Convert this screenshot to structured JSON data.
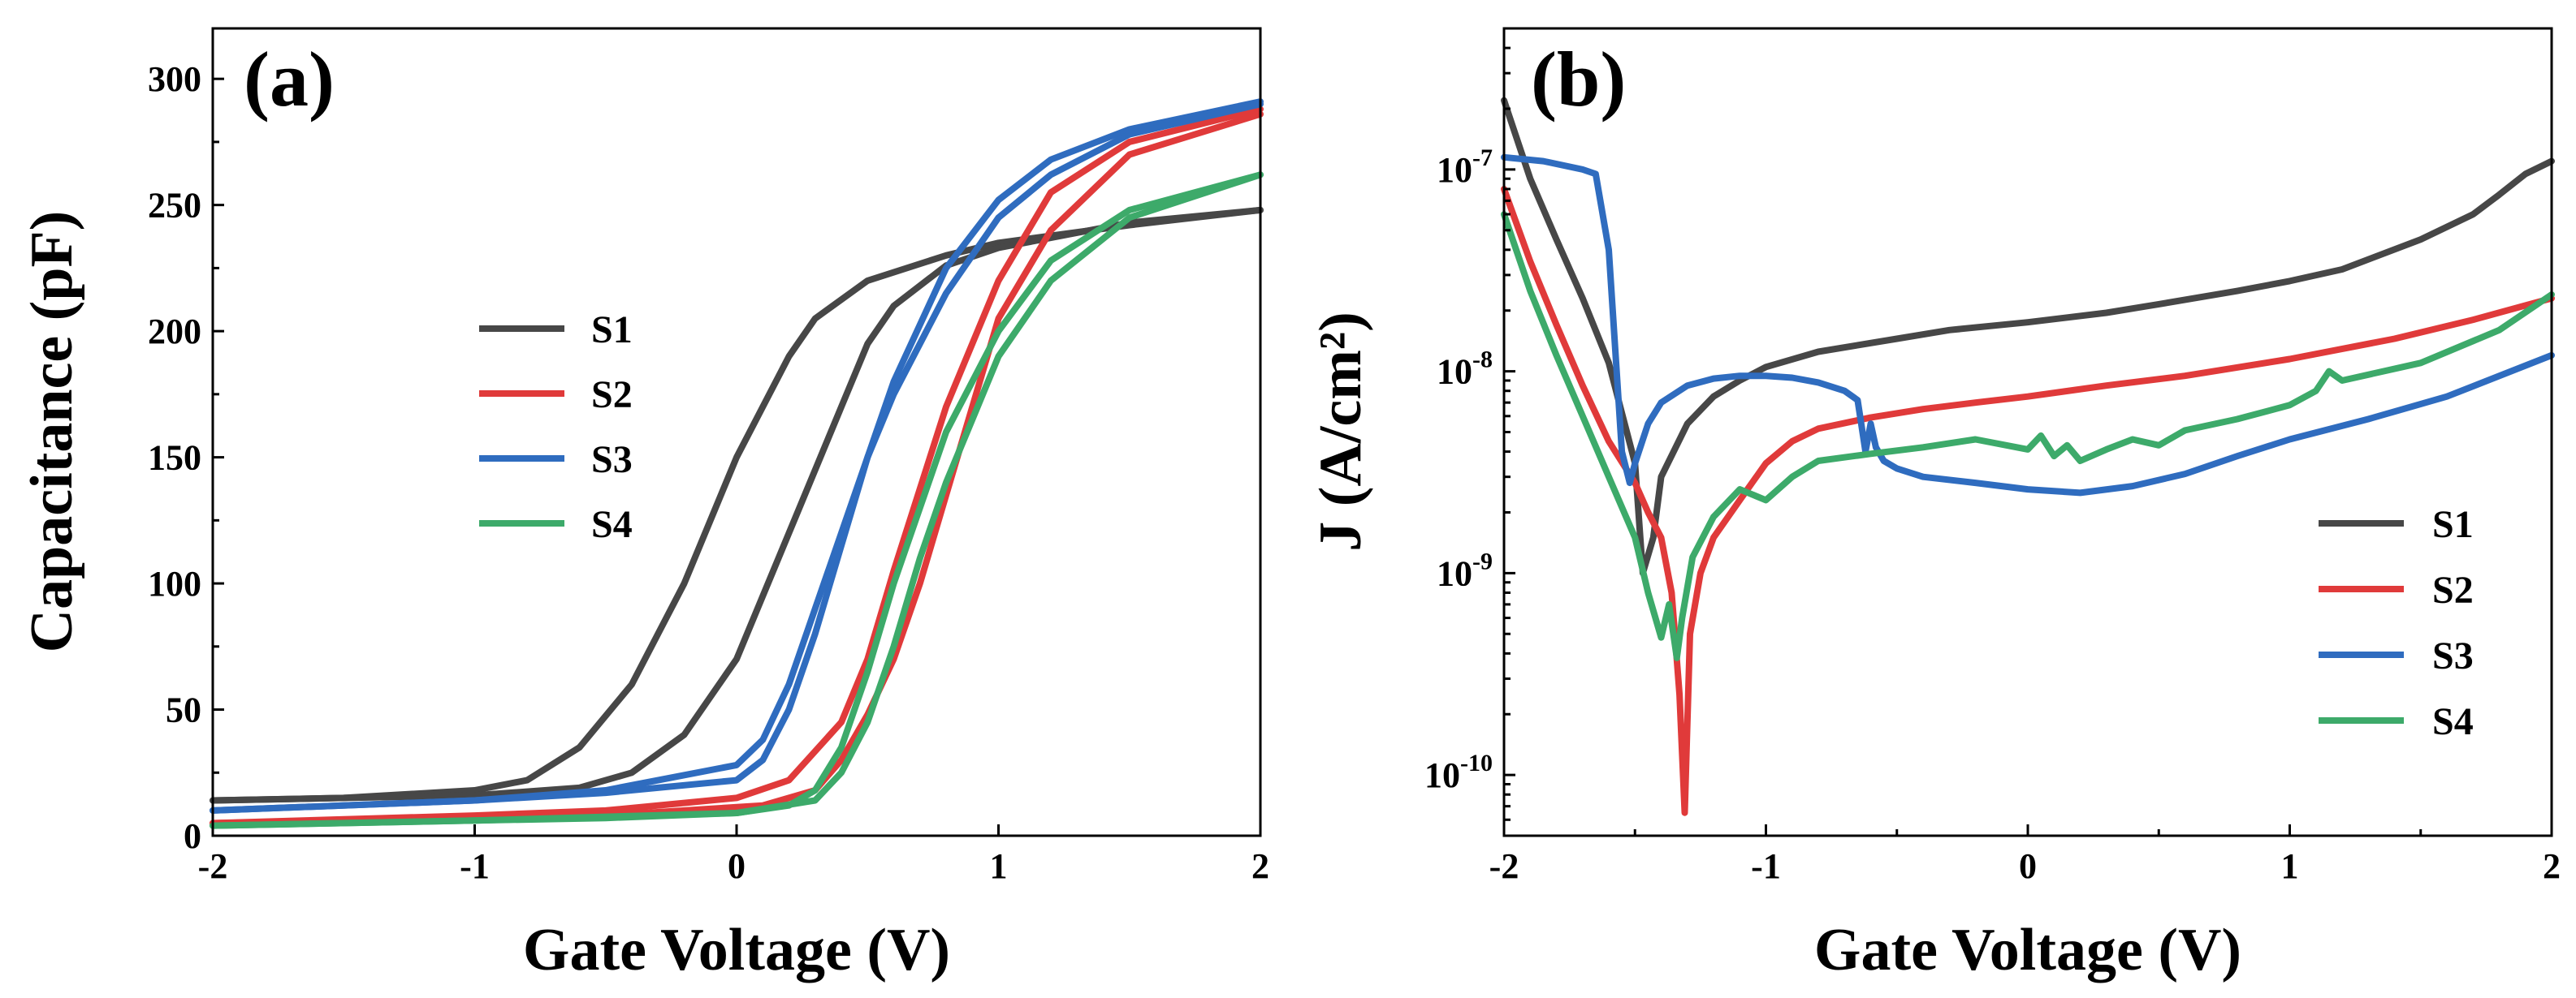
{
  "chart_data": [
    {
      "panel_label": "(a)",
      "type": "line",
      "title": "",
      "xlabel": "Gate Voltage (V)",
      "ylabel": "Capacitance (pF)",
      "xlim": [
        -2,
        2
      ],
      "ylim": [
        0,
        320
      ],
      "x_ticks": [
        "-2",
        "-1",
        "0",
        "1",
        "2"
      ],
      "y_ticks": [
        "0",
        "50",
        "100",
        "150",
        "200",
        "250",
        "300"
      ],
      "legend": {
        "placement": "center-left",
        "entries": [
          "S1",
          "S2",
          "S3",
          "S4"
        ]
      },
      "series": [
        {
          "name": "S1",
          "color": "#474747",
          "forward": {
            "x": [
              -2,
              -1.5,
              -1,
              -0.8,
              -0.6,
              -0.4,
              -0.2,
              0,
              0.2,
              0.3,
              0.5,
              0.8,
              1,
              1.5,
              2
            ],
            "y": [
              14,
              15,
              18,
              22,
              35,
              60,
              100,
              150,
              190,
              205,
              220,
              230,
              235,
              242,
              248
            ]
          },
          "reverse": {
            "x": [
              2,
              1.5,
              1,
              0.8,
              0.6,
              0.5,
              0.4,
              0.2,
              0,
              -0.2,
              -0.4,
              -0.6,
              -1,
              -2
            ],
            "y": [
              248,
              243,
              233,
              226,
              210,
              195,
              170,
              120,
              70,
              40,
              25,
              19,
              16,
              14
            ]
          }
        },
        {
          "name": "S2",
          "color": "#e03a3a",
          "forward": {
            "x": [
              -2,
              -1,
              -0.5,
              0,
              0.2,
              0.4,
              0.5,
              0.6,
              0.8,
              1,
              1.2,
              1.5,
              2
            ],
            "y": [
              5,
              8,
              10,
              15,
              22,
              45,
              70,
              105,
              170,
              220,
              255,
              275,
              288
            ]
          },
          "reverse": {
            "x": [
              2,
              1.5,
              1.2,
              1,
              0.9,
              0.8,
              0.7,
              0.6,
              0.5,
              0.4,
              0.3,
              0.1,
              -0.5,
              -1,
              -2
            ],
            "y": [
              286,
              270,
              240,
              205,
              170,
              135,
              100,
              70,
              48,
              30,
              18,
              12,
              8,
              7,
              5
            ]
          }
        },
        {
          "name": "S3",
          "color": "#2f6cbf",
          "forward": {
            "x": [
              -2,
              -1,
              -0.5,
              0,
              0.1,
              0.2,
              0.3,
              0.4,
              0.5,
              0.6,
              0.8,
              1,
              1.2,
              1.5,
              2
            ],
            "y": [
              10,
              14,
              17,
              22,
              30,
              50,
              80,
              115,
              150,
              180,
              225,
              252,
              268,
              280,
              291
            ]
          },
          "reverse": {
            "x": [
              2,
              1.5,
              1.2,
              1,
              0.8,
              0.6,
              0.5,
              0.4,
              0.3,
              0.2,
              0.1,
              0,
              -0.5,
              -1,
              -2
            ],
            "y": [
              290,
              278,
              262,
              245,
              215,
              175,
              150,
              120,
              90,
              60,
              38,
              28,
              18,
              14,
              10
            ]
          }
        },
        {
          "name": "S4",
          "color": "#3daa6a",
          "forward": {
            "x": [
              -2,
              -1,
              -0.5,
              0,
              0.2,
              0.3,
              0.4,
              0.5,
              0.6,
              0.7,
              0.8,
              1,
              1.2,
              1.5,
              2
            ],
            "y": [
              4,
              6,
              7,
              9,
              12,
              18,
              35,
              65,
              100,
              130,
              160,
              200,
              228,
              248,
              262
            ]
          },
          "reverse": {
            "x": [
              2,
              1.5,
              1.2,
              1,
              0.9,
              0.8,
              0.7,
              0.6,
              0.5,
              0.4,
              0.3,
              0,
              -1,
              -2
            ],
            "y": [
              262,
              245,
              220,
              190,
              165,
              140,
              110,
              75,
              45,
              25,
              14,
              9,
              6,
              4
            ]
          }
        }
      ]
    },
    {
      "panel_label": "(b)",
      "type": "line",
      "title": "",
      "xlabel": "Gate Voltage (V)",
      "ylabel": "J (A/cm²)",
      "yscale": "log",
      "xlim": [
        -2,
        2
      ],
      "ylim": [
        5e-11,
        5e-07
      ],
      "x_ticks": [
        "-2",
        "-1",
        "0",
        "1",
        "2"
      ],
      "y_ticks": [
        {
          "base": "10",
          "exp": "-10",
          "value": 1e-10
        },
        {
          "base": "10",
          "exp": "-9",
          "value": 1e-09
        },
        {
          "base": "10",
          "exp": "-8",
          "value": 1e-08
        },
        {
          "base": "10",
          "exp": "-7",
          "value": 1e-07
        }
      ],
      "legend": {
        "placement": "bottom-right",
        "entries": [
          "S1",
          "S2",
          "S3",
          "S4"
        ]
      },
      "series": [
        {
          "name": "S1",
          "color": "#474747",
          "x": [
            -2,
            -1.9,
            -1.8,
            -1.7,
            -1.6,
            -1.5,
            -1.47,
            -1.43,
            -1.4,
            -1.3,
            -1.2,
            -1.1,
            -1,
            -0.8,
            -0.5,
            -0.3,
            0,
            0.3,
            0.5,
            0.8,
            1,
            1.2,
            1.5,
            1.7,
            1.8,
            1.9,
            2
          ],
          "y": [
            2.2e-07,
            9e-08,
            4.5e-08,
            2.3e-08,
            1.1e-08,
            3.5e-09,
            1e-09,
            1.5e-09,
            3e-09,
            5.5e-09,
            7.5e-09,
            9e-09,
            1.05e-08,
            1.25e-08,
            1.45e-08,
            1.6e-08,
            1.75e-08,
            1.95e-08,
            2.15e-08,
            2.5e-08,
            2.8e-08,
            3.2e-08,
            4.5e-08,
            6e-08,
            7.5e-08,
            9.5e-08,
            1.1e-07
          ]
        },
        {
          "name": "S2",
          "color": "#e03a3a",
          "x": [
            -2,
            -1.9,
            -1.8,
            -1.7,
            -1.6,
            -1.5,
            -1.45,
            -1.4,
            -1.36,
            -1.33,
            -1.31,
            -1.29,
            -1.25,
            -1.2,
            -1.1,
            -1,
            -0.9,
            -0.8,
            -0.6,
            -0.4,
            -0.2,
            0,
            0.3,
            0.6,
            1,
            1.4,
            1.7,
            2
          ],
          "y": [
            8e-08,
            3.5e-08,
            1.7e-08,
            8.5e-09,
            4.5e-09,
            2.8e-09,
            2e-09,
            1.5e-09,
            8e-10,
            2.5e-10,
            6.5e-11,
            5e-10,
            1e-09,
            1.5e-09,
            2.3e-09,
            3.5e-09,
            4.5e-09,
            5.2e-09,
            5.9e-09,
            6.5e-09,
            7e-09,
            7.5e-09,
            8.5e-09,
            9.5e-09,
            1.15e-08,
            1.45e-08,
            1.8e-08,
            2.3e-08
          ]
        },
        {
          "name": "S3",
          "color": "#2f6cbf",
          "x": [
            -2,
            -1.85,
            -1.7,
            -1.65,
            -1.6,
            -1.57,
            -1.55,
            -1.52,
            -1.5,
            -1.45,
            -1.4,
            -1.3,
            -1.2,
            -1.1,
            -1,
            -0.9,
            -0.8,
            -0.7,
            -0.65,
            -0.62,
            -0.6,
            -0.58,
            -0.55,
            -0.5,
            -0.4,
            -0.2,
            0,
            0.2,
            0.4,
            0.6,
            0.8,
            1,
            1.3,
            1.6,
            2
          ],
          "y": [
            1.15e-07,
            1.1e-07,
            1e-07,
            9.5e-08,
            4e-08,
            1e-08,
            4e-09,
            2.8e-09,
            3.5e-09,
            5.5e-09,
            7e-09,
            8.5e-09,
            9.2e-09,
            9.5e-09,
            9.5e-09,
            9.3e-09,
            8.8e-09,
            8e-09,
            7.2e-09,
            4e-09,
            5.5e-09,
            4.2e-09,
            3.6e-09,
            3.3e-09,
            3e-09,
            2.8e-09,
            2.6e-09,
            2.5e-09,
            2.7e-09,
            3.1e-09,
            3.8e-09,
            4.6e-09,
            5.8e-09,
            7.5e-09,
            1.2e-08
          ]
        },
        {
          "name": "S4",
          "color": "#3daa6a",
          "x": [
            -2,
            -1.9,
            -1.8,
            -1.7,
            -1.6,
            -1.5,
            -1.45,
            -1.4,
            -1.37,
            -1.34,
            -1.32,
            -1.28,
            -1.2,
            -1.1,
            -1,
            -0.9,
            -0.8,
            -0.6,
            -0.4,
            -0.2,
            0,
            0.05,
            0.1,
            0.15,
            0.2,
            0.3,
            0.4,
            0.5,
            0.6,
            0.8,
            1,
            1.1,
            1.15,
            1.2,
            1.5,
            1.8,
            2
          ],
          "y": [
            6e-08,
            2.5e-08,
            1.2e-08,
            6e-09,
            3e-09,
            1.5e-09,
            8e-10,
            4.8e-10,
            7e-10,
            3.8e-10,
            6e-10,
            1.2e-09,
            1.9e-09,
            2.6e-09,
            2.3e-09,
            3e-09,
            3.6e-09,
            3.9e-09,
            4.2e-09,
            4.6e-09,
            4.1e-09,
            4.8e-09,
            3.8e-09,
            4.3e-09,
            3.6e-09,
            4.1e-09,
            4.6e-09,
            4.3e-09,
            5.1e-09,
            5.8e-09,
            6.8e-09,
            8e-09,
            1e-08,
            9e-09,
            1.1e-08,
            1.6e-08,
            2.4e-08
          ]
        }
      ]
    }
  ]
}
